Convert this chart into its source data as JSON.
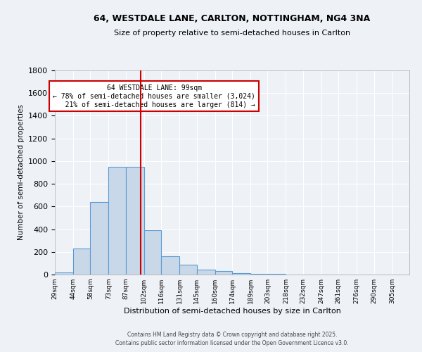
{
  "title_line1": "64, WESTDALE LANE, CARLTON, NOTTINGHAM, NG4 3NA",
  "title_line2": "Size of property relative to semi-detached houses in Carlton",
  "xlabel": "Distribution of semi-detached houses by size in Carlton",
  "ylabel": "Number of semi-detached properties",
  "bin_edges": [
    29,
    44,
    58,
    73,
    87,
    102,
    116,
    131,
    145,
    160,
    174,
    189,
    203,
    218,
    232,
    247,
    261,
    276,
    290,
    305,
    319
  ],
  "counts": [
    20,
    230,
    640,
    950,
    950,
    390,
    160,
    85,
    45,
    30,
    10,
    7,
    5,
    3,
    2,
    1,
    1,
    1,
    0,
    0
  ],
  "bar_color": "#c8d8e8",
  "bar_edge_color": "#5b9bd5",
  "property_size": 99,
  "vline_color": "#cc0000",
  "annotation_text": "64 WESTDALE LANE: 99sqm\n← 78% of semi-detached houses are smaller (3,024)\n   21% of semi-detached houses are larger (814) →",
  "annotation_box_color": "#ffffff",
  "annotation_box_edge": "#cc0000",
  "ylim": [
    0,
    1800
  ],
  "yticks": [
    0,
    200,
    400,
    600,
    800,
    1000,
    1200,
    1400,
    1600,
    1800
  ],
  "bg_color": "#eef2f7",
  "grid_color": "#ffffff",
  "footer_line1": "Contains HM Land Registry data © Crown copyright and database right 2025.",
  "footer_line2": "Contains public sector information licensed under the Open Government Licence v3.0."
}
